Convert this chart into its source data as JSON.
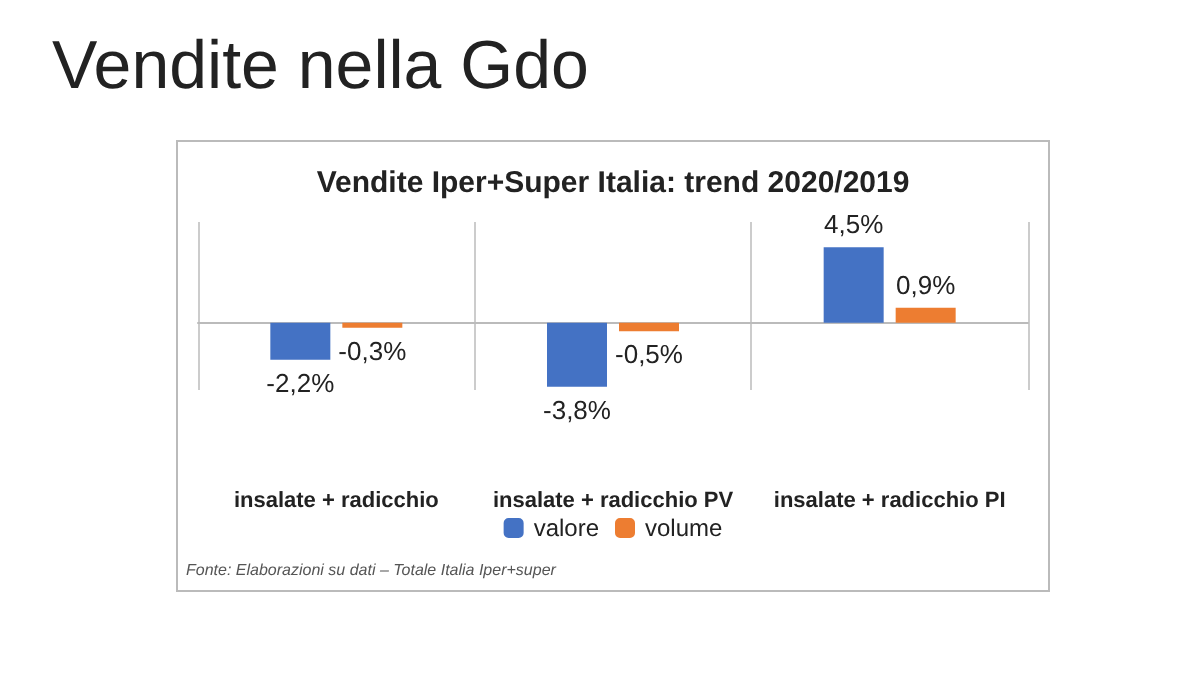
{
  "chart_data": {
    "type": "bar",
    "title": "Vendite nella Gdo",
    "subtitle": "Vendite Iper+Super Italia: trend 2020/2019",
    "categories": [
      "insalate + radicchio",
      "insalate + radicchio PV",
      "insalate + radicchio PI"
    ],
    "series": [
      {
        "name": "valore",
        "color": "#4472c4",
        "values": [
          -2.2,
          -3.8,
          4.5
        ],
        "value_labels": [
          "-2,2%",
          "-3,8%",
          "4,5%"
        ]
      },
      {
        "name": "volume",
        "color": "#ed7d31",
        "values": [
          -0.3,
          -0.5,
          0.9
        ],
        "value_labels": [
          "-0,3%",
          "-0,5%",
          "0,9%"
        ]
      }
    ],
    "grid": "x",
    "legend": "bottom",
    "annotations": [
      "Fonte: Elaborazioni su dati – Totale Italia Iper+super"
    ]
  }
}
